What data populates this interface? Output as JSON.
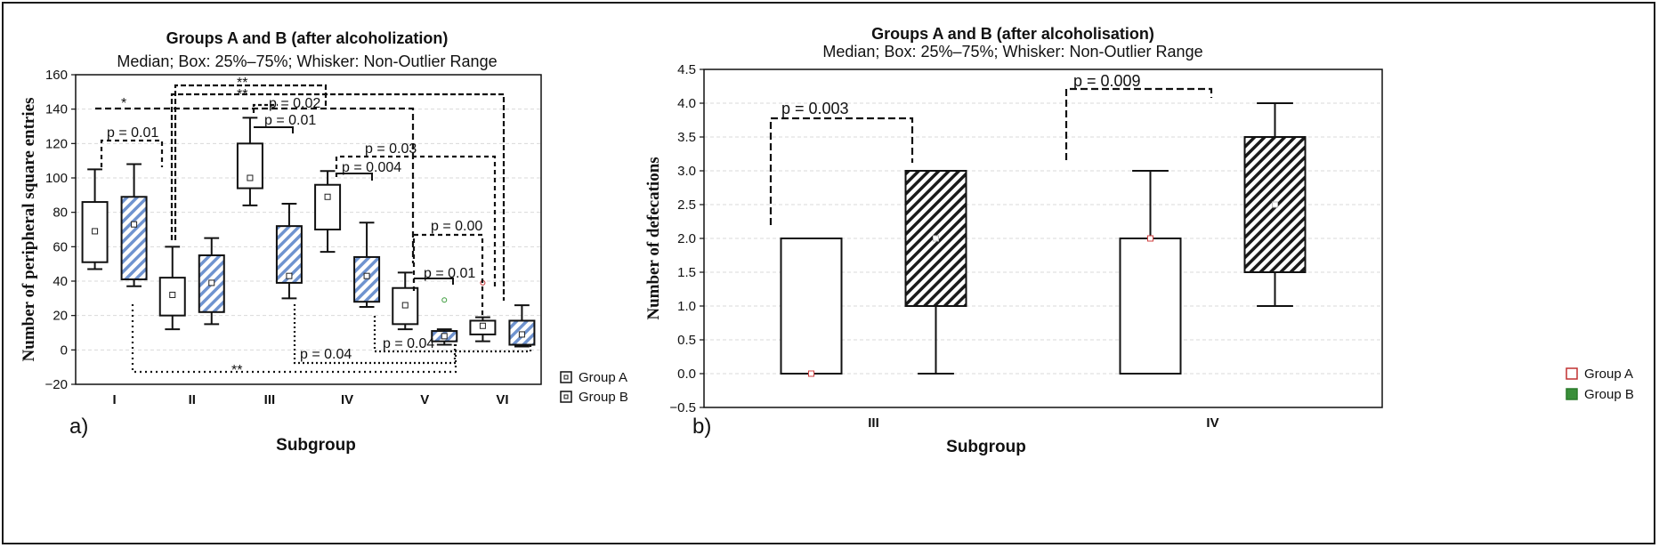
{
  "chart_data": [
    {
      "panel_label": "a)",
      "type": "box",
      "title": "Groups A and B (after alcoholization)",
      "subtitle": "Median; Box: 25%–75%; Whisker: Non-Outlier Range",
      "xlabel": "Subgroup",
      "ylabel": "Number of peripheral square entries",
      "ylim": [
        -20,
        160
      ],
      "yticks": [
        "−20",
        "0",
        "20",
        "40",
        "60",
        "80",
        "100",
        "120",
        "140",
        "160"
      ],
      "categories": [
        "I",
        "II",
        "III",
        "IV",
        "V",
        "VI"
      ],
      "legend": [
        "Group A",
        "Group B"
      ],
      "legend_position": "right-bottom",
      "grid": true,
      "series": [
        {
          "name": "Group A",
          "pattern": "open",
          "boxes": [
            {
              "min": 47,
              "q1": 51,
              "median": 69,
              "q3": 86,
              "max": 105
            },
            {
              "min": 12,
              "q1": 20,
              "median": 32,
              "q3": 42,
              "max": 60
            },
            {
              "min": 84,
              "q1": 94,
              "median": 100,
              "q3": 120,
              "max": 135
            },
            {
              "min": 57,
              "q1": 70,
              "median": 89,
              "q3": 96,
              "max": 104
            },
            {
              "min": 12,
              "q1": 15,
              "median": 26,
              "q3": 36,
              "max": 45
            },
            {
              "min": 5,
              "q1": 9,
              "median": 14,
              "q3": 17,
              "max": 19
            }
          ]
        },
        {
          "name": "Group B",
          "pattern": "hatched",
          "boxes": [
            {
              "min": 37,
              "q1": 41,
              "median": 73,
              "q3": 89,
              "max": 108
            },
            {
              "min": 15,
              "q1": 22,
              "median": 39,
              "q3": 55,
              "max": 65
            },
            {
              "min": 30,
              "q1": 39,
              "median": 43,
              "q3": 72,
              "max": 85
            },
            {
              "min": 25,
              "q1": 28,
              "median": 43,
              "q3": 54,
              "max": 74
            },
            {
              "min": 3,
              "q1": 5,
              "median": 8,
              "q3": 11,
              "max": 12
            },
            {
              "min": 2,
              "q1": 3,
              "median": 9,
              "q3": 17,
              "max": 26
            }
          ]
        }
      ],
      "outliers": [
        {
          "category": "V",
          "series": "Group B",
          "value": 29
        },
        {
          "category": "VI",
          "series": "Group A",
          "value": 39
        }
      ],
      "annotations": [
        {
          "text": "p = 0.01",
          "between": [
            "I-A",
            "I-B"
          ]
        },
        {
          "text": "*",
          "between": [
            "I-A",
            "IV-B"
          ]
        },
        {
          "text": "**",
          "between": [
            "II-A",
            "III-A"
          ]
        },
        {
          "text": "**",
          "between": [
            "II-A",
            "VI-A"
          ]
        },
        {
          "text": "p = 0.02",
          "between": [
            "II-A",
            "III-A"
          ]
        },
        {
          "text": "p = 0.01",
          "between": [
            "III-A",
            "III-B"
          ]
        },
        {
          "text": "p = 0.03",
          "between": [
            "IV-A",
            "VI-A"
          ]
        },
        {
          "text": "p = 0.004",
          "between": [
            "IV-A",
            "IV-B"
          ]
        },
        {
          "text": "p = 0.00",
          "between": [
            "V-A",
            "VI-A"
          ]
        },
        {
          "text": "p = 0.01",
          "between": [
            "V-A",
            "V-B"
          ]
        },
        {
          "text": "p = 0.04",
          "between": [
            "III-B",
            "V-B"
          ]
        },
        {
          "text": "p = 0.04",
          "between": [
            "IV-B",
            "VI-B"
          ]
        },
        {
          "text": "**",
          "between": [
            "I-B",
            "V-B"
          ]
        }
      ]
    },
    {
      "panel_label": "b)",
      "type": "box",
      "title": "Groups A and B (after alcoholisation)",
      "subtitle": "Median; Box: 25%–75%; Whisker: Non-Outlier Range",
      "xlabel": "Subgroup",
      "ylabel": "Number of defecations",
      "ylim": [
        -0.5,
        4.5
      ],
      "yticks": [
        "−0.5",
        "0.0",
        "0.5",
        "1.0",
        "1.5",
        "2.0",
        "2.5",
        "3.0",
        "3.5",
        "4.0",
        "4.5"
      ],
      "categories": [
        "III",
        "IV"
      ],
      "legend": [
        "Group A",
        "Group B"
      ],
      "legend_position": "right-bottom",
      "grid": true,
      "series": [
        {
          "name": "Group A",
          "pattern": "open",
          "boxes": [
            {
              "min": 0,
              "q1": 0,
              "median": 0,
              "q3": 2,
              "max": 2
            },
            {
              "min": 0,
              "q1": 0,
              "median": 2,
              "q3": 2,
              "max": 3
            }
          ]
        },
        {
          "name": "Group B",
          "pattern": "hatched",
          "boxes": [
            {
              "min": 0,
              "q1": 1,
              "median": 2,
              "q3": 3,
              "max": 3
            },
            {
              "min": 1,
              "q1": 1.5,
              "median": 2.5,
              "q3": 3.5,
              "max": 4
            }
          ]
        }
      ],
      "annotations": [
        {
          "text": "p = 0.003",
          "between": [
            "III-A",
            "III-B"
          ]
        },
        {
          "text": "p = 0.009",
          "between": [
            "IV-A",
            "IV-B"
          ]
        }
      ]
    }
  ]
}
